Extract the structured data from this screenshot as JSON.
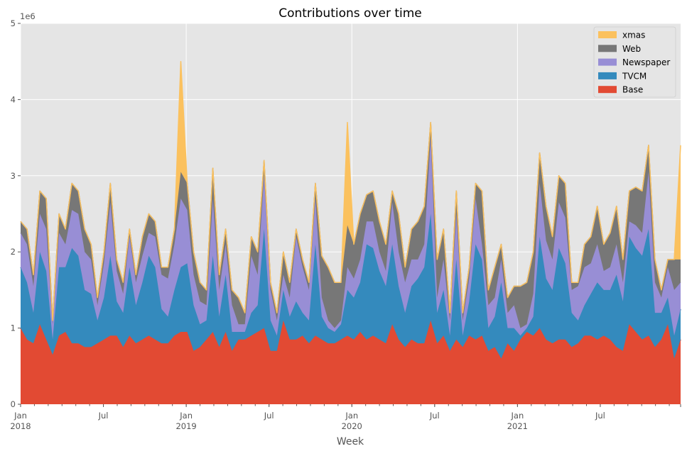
{
  "chart_data": {
    "type": "area",
    "stacked": true,
    "title": "Contributions over time",
    "xlabel": "Week",
    "ylabel": "",
    "y_offset_label": "1e6",
    "ylim": [
      0,
      5000000
    ],
    "yticks": [
      "0",
      "1",
      "2",
      "3",
      "4",
      "5"
    ],
    "xticks": [
      {
        "label": "Jan",
        "sub": "2018",
        "date": "2018-01"
      },
      {
        "label": "Jul",
        "sub": "",
        "date": "2018-07"
      },
      {
        "label": "Jan",
        "sub": "2019",
        "date": "2019-01"
      },
      {
        "label": "Jul",
        "sub": "",
        "date": "2019-07"
      },
      {
        "label": "Jan",
        "sub": "2020",
        "date": "2020-01"
      },
      {
        "label": "Jul",
        "sub": "",
        "date": "2020-07"
      },
      {
        "label": "Jan",
        "sub": "2021",
        "date": "2021-01"
      },
      {
        "label": "Jul",
        "sub": "",
        "date": "2021-07"
      }
    ],
    "x_start": "2018-01-07",
    "x_step_weeks": 2,
    "value_unit": 1000000,
    "grid": true,
    "legend_position": "top-right",
    "series": [
      {
        "name": "Base",
        "color": "#E24A33",
        "values": [
          1.0,
          0.85,
          0.8,
          1.05,
          0.85,
          0.65,
          0.9,
          0.95,
          0.8,
          0.8,
          0.75,
          0.75,
          0.8,
          0.85,
          0.9,
          0.9,
          0.75,
          0.9,
          0.8,
          0.85,
          0.9,
          0.85,
          0.8,
          0.8,
          0.9,
          0.95,
          0.95,
          0.7,
          0.75,
          0.85,
          0.95,
          0.75,
          0.95,
          0.7,
          0.85,
          0.85,
          0.9,
          0.95,
          1.0,
          0.7,
          0.7,
          1.1,
          0.85,
          0.85,
          0.9,
          0.8,
          0.9,
          0.85,
          0.8,
          0.8,
          0.85,
          0.9,
          0.85,
          0.95,
          0.85,
          0.9,
          0.85,
          0.8,
          1.05,
          0.85,
          0.75,
          0.85,
          0.8,
          0.8,
          1.1,
          0.8,
          0.9,
          0.7,
          0.85,
          0.75,
          0.9,
          0.85,
          0.9,
          0.7,
          0.75,
          0.6,
          0.8,
          0.7,
          0.85,
          0.95,
          0.9,
          1.0,
          0.85,
          0.8,
          0.85,
          0.85,
          0.75,
          0.8,
          0.9,
          0.9,
          0.85,
          0.9,
          0.85,
          0.75,
          0.7,
          1.05,
          0.95,
          0.85,
          0.9,
          0.75,
          0.85,
          1.05,
          0.6,
          0.85
        ]
      },
      {
        "name": "TVCM",
        "color": "#348ABD",
        "values": [
          0.8,
          0.75,
          0.4,
          0.95,
          0.9,
          0.2,
          0.9,
          0.85,
          1.25,
          1.15,
          0.75,
          0.7,
          0.3,
          0.55,
          1.05,
          0.45,
          0.45,
          0.9,
          0.5,
          0.75,
          1.05,
          0.95,
          0.45,
          0.35,
          0.6,
          0.85,
          0.9,
          0.6,
          0.3,
          0.25,
          1.0,
          0.4,
          0.75,
          0.25,
          0.1,
          0.1,
          0.3,
          0.35,
          1.3,
          0.4,
          0.2,
          0.4,
          0.3,
          0.5,
          0.3,
          0.3,
          1.2,
          0.3,
          0.2,
          0.15,
          0.2,
          0.6,
          0.55,
          0.65,
          1.25,
          1.15,
          0.9,
          0.75,
          1.05,
          0.7,
          0.45,
          0.7,
          0.85,
          1.0,
          1.4,
          0.4,
          0.6,
          0.2,
          1.05,
          0.15,
          0.45,
          1.25,
          1.0,
          0.3,
          0.4,
          1.0,
          0.2,
          0.3,
          0.05,
          0.05,
          0.25,
          1.2,
          0.8,
          0.7,
          1.2,
          1.0,
          0.45,
          0.3,
          0.4,
          0.55,
          0.75,
          0.6,
          0.65,
          0.95,
          0.65,
          1.15,
          1.1,
          1.1,
          1.4,
          0.45,
          0.35,
          0.35,
          0.3,
          0.4
        ]
      },
      {
        "name": "Newspaper",
        "color": "#988ED5",
        "values": [
          0.45,
          0.5,
          0.35,
          0.5,
          0.55,
          0.2,
          0.45,
          0.3,
          0.5,
          0.55,
          0.5,
          0.45,
          0.2,
          0.45,
          0.7,
          0.4,
          0.25,
          0.4,
          0.3,
          0.35,
          0.3,
          0.4,
          0.45,
          0.5,
          0.6,
          0.9,
          0.7,
          0.4,
          0.3,
          0.2,
          0.75,
          0.35,
          0.4,
          0.35,
          0.1,
          0.1,
          0.75,
          0.4,
          0.7,
          0.4,
          0.2,
          0.2,
          0.25,
          0.85,
          0.6,
          0.4,
          0.6,
          0.25,
          0.1,
          0.05,
          0.05,
          0.3,
          0.25,
          0.3,
          0.3,
          0.35,
          0.25,
          0.2,
          0.55,
          0.45,
          0.4,
          0.35,
          0.25,
          0.3,
          1.0,
          0.2,
          0.4,
          0.2,
          0.6,
          0.2,
          0.3,
          0.6,
          0.2,
          0.3,
          0.25,
          0.3,
          0.2,
          0.3,
          0.1,
          0.05,
          0.3,
          0.7,
          0.5,
          0.4,
          0.6,
          0.6,
          0.3,
          0.45,
          0.5,
          0.4,
          0.5,
          0.25,
          0.3,
          0.4,
          0.25,
          0.2,
          0.3,
          0.3,
          0.75,
          0.4,
          0.2,
          0.4,
          0.6,
          0.35
        ]
      },
      {
        "name": "Web",
        "color": "#777777",
        "values": [
          0.15,
          0.2,
          0.15,
          0.3,
          0.4,
          0.05,
          0.25,
          0.2,
          0.35,
          0.3,
          0.3,
          0.2,
          0.1,
          0.15,
          0.25,
          0.15,
          0.15,
          0.1,
          0.1,
          0.25,
          0.25,
          0.2,
          0.1,
          0.15,
          0.2,
          0.35,
          0.35,
          0.3,
          0.25,
          0.2,
          0.4,
          0.2,
          0.2,
          0.2,
          0.35,
          0.15,
          0.25,
          0.3,
          0.2,
          0.1,
          0.1,
          0.3,
          0.2,
          0.1,
          0.1,
          0.1,
          0.2,
          0.55,
          0.7,
          0.6,
          0.5,
          0.55,
          0.45,
          0.6,
          0.35,
          0.4,
          0.4,
          0.35,
          0.15,
          0.5,
          0.2,
          0.4,
          0.5,
          0.5,
          0.2,
          0.5,
          0.4,
          0.1,
          0.3,
          0.1,
          0.15,
          0.2,
          0.7,
          0.2,
          0.4,
          0.2,
          0.2,
          0.25,
          0.55,
          0.55,
          0.55,
          0.4,
          0.45,
          0.3,
          0.35,
          0.45,
          0.1,
          0.05,
          0.3,
          0.35,
          0.5,
          0.35,
          0.45,
          0.5,
          0.3,
          0.4,
          0.5,
          0.55,
          0.35,
          0.3,
          0.1,
          0.1,
          0.4,
          0.3
        ]
      },
      {
        "name": "xmas",
        "color": "#FBC15E",
        "values": [
          0,
          0,
          0,
          0,
          0,
          0,
          0,
          0,
          0,
          0,
          0,
          0,
          0,
          0,
          0,
          0,
          0,
          0,
          0,
          0,
          0,
          0,
          0,
          0,
          0,
          1.45,
          0,
          0,
          0,
          0,
          0,
          0,
          0,
          0,
          0,
          0,
          0,
          0,
          0,
          0,
          0,
          0,
          0,
          0,
          0,
          0,
          0,
          0,
          0,
          0,
          0,
          1.35,
          0,
          0,
          0,
          0,
          0,
          0,
          0,
          0,
          0,
          0,
          0,
          0,
          0,
          0,
          0,
          0,
          0,
          0,
          0,
          0,
          0,
          0,
          0,
          0,
          0,
          0,
          0,
          0,
          0,
          0,
          0,
          0,
          0,
          0,
          0,
          0,
          0,
          0,
          0,
          0,
          0,
          0,
          0,
          0,
          0,
          0,
          0,
          0,
          0,
          0,
          0,
          1.5
        ]
      }
    ]
  }
}
